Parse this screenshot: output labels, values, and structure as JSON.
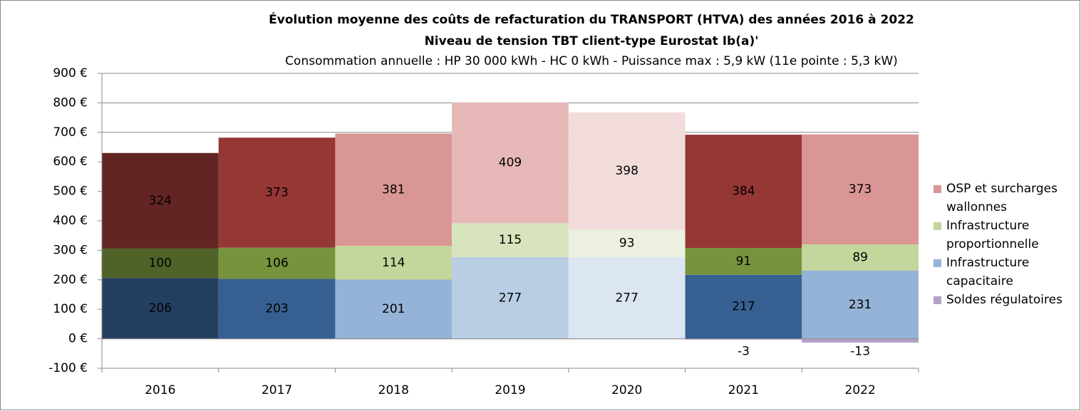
{
  "chart_data": {
    "type": "stacked_bar",
    "title": "Évolution moyenne des coûts de refacturation du TRANSPORT (HTVA) des années 2016 à 2022",
    "subtitle": "Niveau de tension TBT client-type Eurostat Ib(a)'",
    "subtitle2": "Consommation annuelle : HP 30 000 kWh - HC 0 kWh - Puissance max : 5,9 kW (11e pointe : 5,3 kW)",
    "categories": [
      "2016",
      "2017",
      "2018",
      "2019",
      "2020",
      "2021",
      "2022"
    ],
    "series": [
      {
        "name": "Infrastructure capacitaire",
        "color": "#95b3d7",
        "values": [
          206,
          203,
          201,
          277,
          277,
          217,
          231
        ],
        "colors": [
          "#243f60",
          "#376092",
          "#95b3d7",
          "#b9cde5",
          "#dce6f2",
          "#376092",
          "#95b3d7"
        ]
      },
      {
        "name": "Infrastructure proportionnelle",
        "color": "#c3d69b",
        "values": [
          100,
          106,
          114,
          115,
          93,
          91,
          89
        ],
        "colors": [
          "#4f6228",
          "#77933c",
          "#c3d69b",
          "#d7e4bd",
          "#ebf1de",
          "#77933c",
          "#c3d69b"
        ]
      },
      {
        "name": "OSP et surcharges wallonnes",
        "color": "#d99694",
        "values": [
          324,
          373,
          381,
          409,
          398,
          384,
          373
        ],
        "colors": [
          "#632523",
          "#953735",
          "#d99694",
          "#e6b9b8",
          "#f2dcdb",
          "#953735",
          "#d99694"
        ]
      },
      {
        "name": "Soldes régulatoires",
        "color": "#b3a2c7",
        "values": [
          null,
          null,
          null,
          null,
          null,
          -3,
          -13
        ],
        "colors": [
          "#b3a2c7",
          "#b3a2c7",
          "#b3a2c7",
          "#b3a2c7",
          "#b3a2c7",
          "#b3a2c7",
          "#b3a2c7"
        ]
      }
    ],
    "legend_order": [
      2,
      1,
      0,
      3
    ],
    "ylim": [
      -100,
      900
    ],
    "yticks": [
      {
        "value": -100,
        "label": "-100 €"
      },
      {
        "value": 0,
        "label": "0 €"
      },
      {
        "value": 100,
        "label": "100 €"
      },
      {
        "value": 200,
        "label": "200 €"
      },
      {
        "value": 300,
        "label": "300 €"
      },
      {
        "value": 400,
        "label": "400 €"
      },
      {
        "value": 500,
        "label": "500 €"
      },
      {
        "value": 600,
        "label": "600 €"
      },
      {
        "value": 700,
        "label": "700 €"
      },
      {
        "value": 800,
        "label": "800 €"
      },
      {
        "value": 900,
        "label": "900 €"
      }
    ],
    "grid": true,
    "legend": "right"
  }
}
